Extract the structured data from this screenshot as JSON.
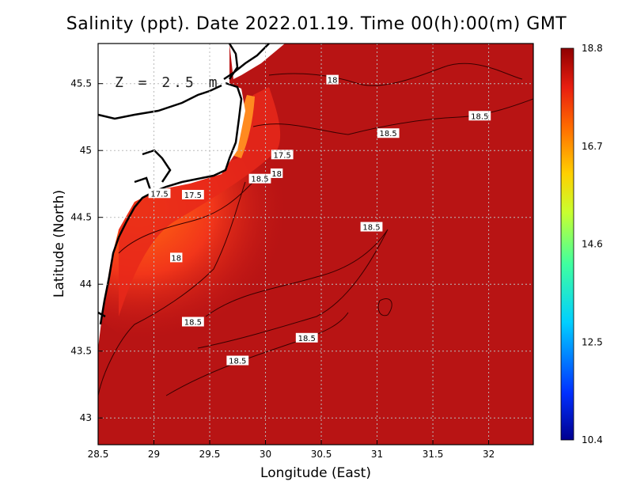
{
  "title": "Salinity (ppt). Date 2022.01.19. Time 00(h):00(m) GMT",
  "depth_label": "Z = 2.5 m",
  "xlabel": "Longitude (East)",
  "ylabel": "Latitude (North)",
  "chart_data": {
    "type": "heatmap",
    "variable": "Salinity (ppt)",
    "x": {
      "label": "Longitude (East)",
      "range": [
        28.5,
        32.4
      ],
      "ticks": [
        "28.5",
        "29",
        "29.5",
        "30",
        "30.5",
        "31",
        "31.5",
        "32"
      ]
    },
    "y": {
      "label": "Latitude (North)",
      "range": [
        42.8,
        45.8
      ],
      "ticks": [
        "43",
        "43.5",
        "44",
        "44.5",
        "45",
        "45.5"
      ]
    },
    "grid": true,
    "colorbar": {
      "placement": "right",
      "min": 10.4,
      "max": 18.8,
      "ticks": [
        "18.8",
        "16.7",
        "14.6",
        "12.5",
        "10.4"
      ]
    },
    "contour_labels": [
      {
        "text": "18",
        "lon": 30.6,
        "lat": 45.53
      },
      {
        "text": "18.5",
        "lon": 31.1,
        "lat": 45.13
      },
      {
        "text": "18.5",
        "lon": 31.92,
        "lat": 45.26
      },
      {
        "text": "17.5",
        "lon": 30.15,
        "lat": 44.97
      },
      {
        "text": "18",
        "lon": 30.1,
        "lat": 44.83
      },
      {
        "text": "18.5",
        "lon": 29.95,
        "lat": 44.79
      },
      {
        "text": "17.5",
        "lon": 29.05,
        "lat": 44.68
      },
      {
        "text": "17.5",
        "lon": 29.35,
        "lat": 44.67
      },
      {
        "text": "18.5",
        "lon": 30.95,
        "lat": 44.43
      },
      {
        "text": "18",
        "lon": 29.2,
        "lat": 44.2
      },
      {
        "text": "18.5",
        "lon": 29.35,
        "lat": 43.72
      },
      {
        "text": "18.5",
        "lon": 30.37,
        "lat": 43.6
      },
      {
        "text": "18.5",
        "lon": 29.75,
        "lat": 43.43
      }
    ]
  }
}
